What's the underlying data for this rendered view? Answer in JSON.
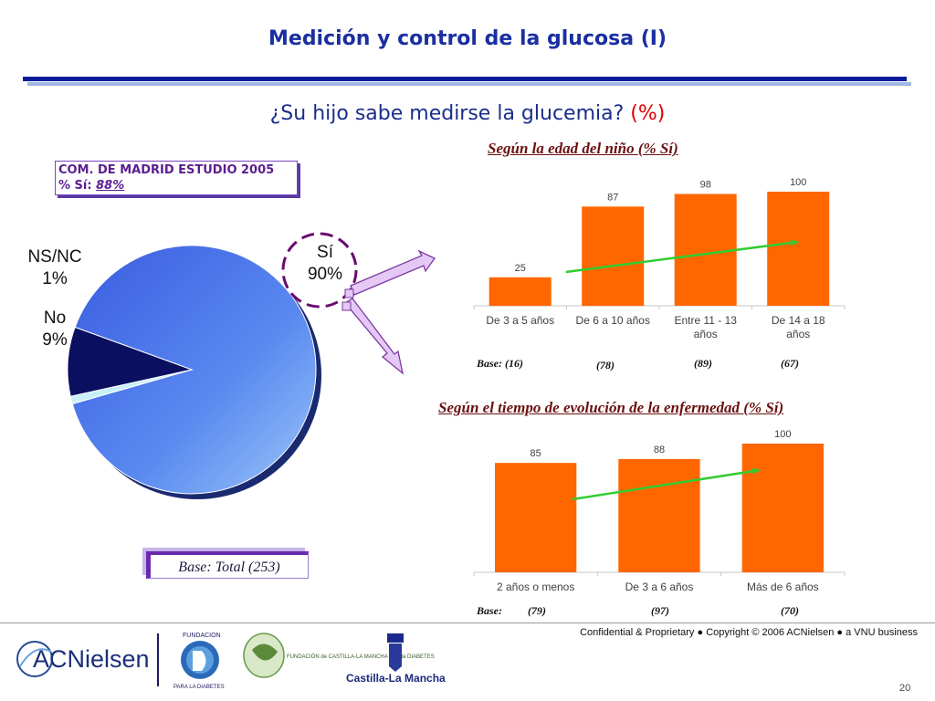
{
  "title": "Medición y control de la glucosa (I)",
  "question": {
    "text": "¿Su hijo sabe medirse la glucemia?",
    "pct": "(%)"
  },
  "madrid_box": {
    "line1": "COM. DE MADRID ESTUDIO 2005",
    "line2_label": "% Sí:",
    "line2_value": "88%"
  },
  "base_total": "Base: Total (253)",
  "footer": {
    "confidential": "Confidential & Proprietary ● Copyright © 2006 ACNielsen ● a VNU business",
    "page_number": "20",
    "logos": {
      "acnielsen": "ACNielsen",
      "fundacion_top": "FUNDACION",
      "fundacion_bottom": "PARA LA DIABETES",
      "fundacion_clm": "FUNDACIÓN de CASTILLA-LA MANCHA para la DIABETES",
      "castilla": "Castilla-La Mancha"
    }
  },
  "colors": {
    "bar": "#ff6600",
    "trend": "#33cc33",
    "pie_si": "#4a74e8",
    "pie_no": "#0a0f60",
    "pie_nsnc": "#c8f0f8",
    "title": "#1a2fa0"
  },
  "chart_data": [
    {
      "type": "pie",
      "title": "",
      "slices": [
        {
          "label": "Sí",
          "value": 90,
          "display": "90%"
        },
        {
          "label": "NS/NC",
          "value": 1,
          "display": "1%"
        },
        {
          "label": "No",
          "value": 9,
          "display": "9%"
        }
      ]
    },
    {
      "type": "bar",
      "title": "Según la edad del niño (% Sí)",
      "categories": [
        "De 3 a 5 años",
        "De 6 a 10 años",
        "Entre 11 - 13 años",
        "De 14  a 18 años"
      ],
      "values": [
        25,
        87,
        98,
        100
      ],
      "bases": [
        "(16)",
        "(78)",
        "(89)",
        "(67)"
      ],
      "base_label": "Base:",
      "ylim": [
        0,
        100
      ]
    },
    {
      "type": "bar",
      "title": "Según el tiempo de evolución de la enfermedad (% Sí)",
      "categories": [
        "2 años o menos",
        "De 3 a 6 años",
        "Más de 6 años"
      ],
      "values": [
        85,
        88,
        100
      ],
      "bases": [
        "(79)",
        "(97)",
        "(70)"
      ],
      "base_label": "Base:",
      "ylim": [
        0,
        100
      ]
    }
  ]
}
